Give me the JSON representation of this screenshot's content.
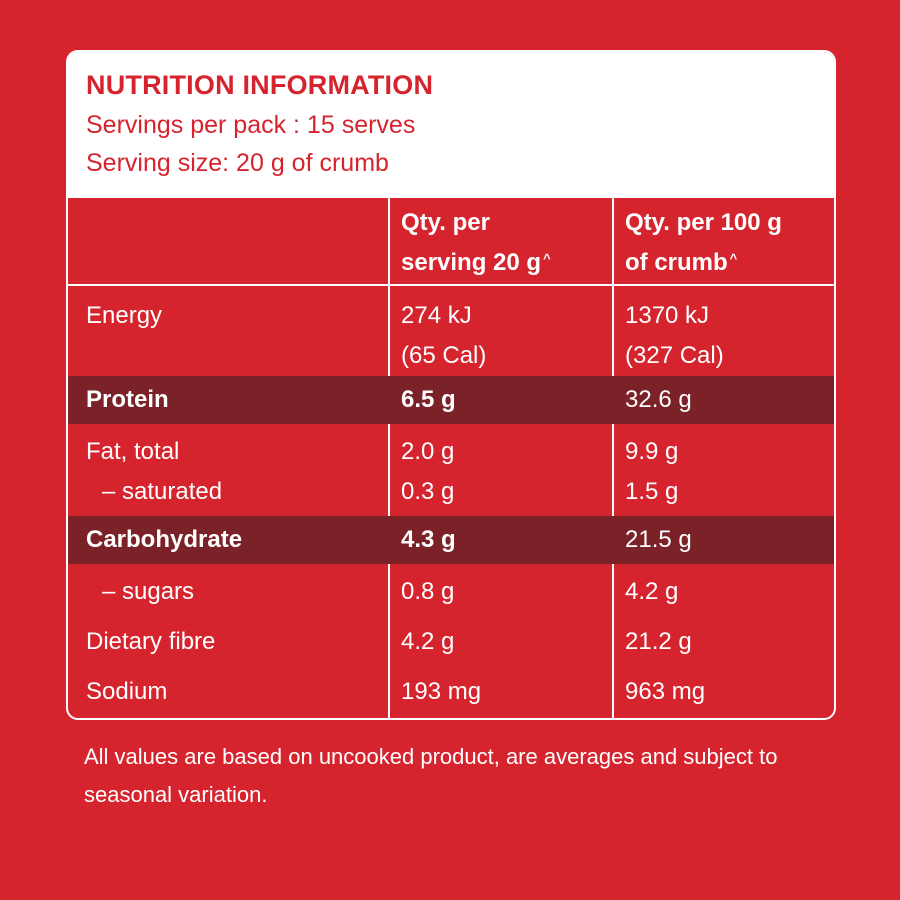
{
  "header": {
    "title": "NUTRITION INFORMATION",
    "servings_per_pack": "Servings per pack : 15 serves",
    "serving_size": "Serving size: 20 g of crumb"
  },
  "columns": {
    "per_serving_line1": "Qty. per",
    "per_serving_line2": "serving  20 g",
    "per_serving_mark": "^",
    "per_100g_line1": "Qty. per 100 g",
    "per_100g_line2": "of crumb",
    "per_100g_mark": "^"
  },
  "rows": {
    "energy": {
      "label": "Energy",
      "serving_kj": "274 kJ",
      "serving_cal": "(65 Cal)",
      "per100_kj": "1370 kJ",
      "per100_cal": "(327 Cal)"
    },
    "protein": {
      "label": "Protein",
      "serving": "6.5 g",
      "per100": "32.6 g"
    },
    "fat_total": {
      "label": "Fat, total",
      "serving": "2.0 g",
      "per100": "9.9 g"
    },
    "saturated": {
      "label": "–  saturated",
      "serving": "0.3 g",
      "per100": "1.5 g"
    },
    "carbohydrate": {
      "label": "Carbohydrate",
      "serving": "4.3 g",
      "per100": "21.5 g"
    },
    "sugars": {
      "label": "–  sugars",
      "serving": "0.8 g",
      "per100": "4.2 g"
    },
    "fibre": {
      "label": "Dietary fibre",
      "serving": "4.2 g",
      "per100": "21.2 g"
    },
    "sodium": {
      "label": "Sodium",
      "serving": "193 mg",
      "per100": "963 mg"
    }
  },
  "footnote": "All values are based on uncooked product, are averages and subject to seasonal variation.",
  "colors": {
    "background": "#d6242e",
    "shaded_row": "#7b2229",
    "header_bg": "#ffffff",
    "text_light": "#ffffff"
  }
}
